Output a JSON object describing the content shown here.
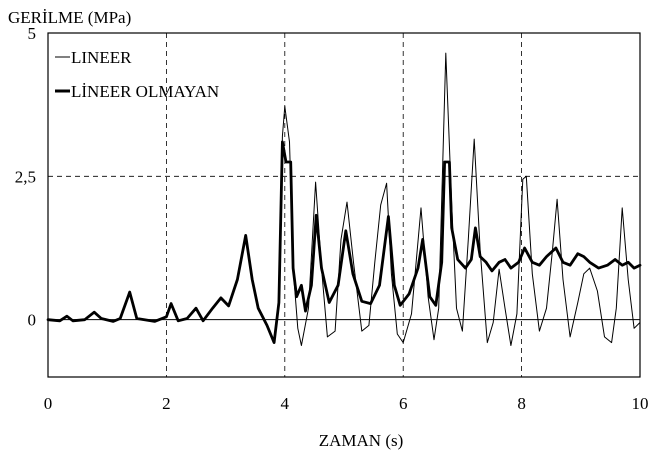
{
  "chart_data": {
    "type": "line",
    "ylabel": "GERİLME (MPa)",
    "xlabel": "ZAMAN (s)",
    "xlim": [
      0,
      10
    ],
    "ylim": [
      -1,
      5
    ],
    "x_ticks": [
      0,
      2,
      4,
      6,
      8,
      10
    ],
    "x_tick_labels": [
      "0",
      "2",
      "4",
      "6",
      "8",
      "10"
    ],
    "y_ticks": [
      0,
      2.5,
      5
    ],
    "y_tick_labels": [
      "0",
      "2,5",
      "5"
    ],
    "grid": "dashed at tick positions",
    "legend_position": "top-left",
    "series": [
      {
        "name": "LINEER",
        "color": "#000000",
        "style": "thin",
        "points": [
          [
            0,
            0
          ],
          [
            0.2,
            -0.02
          ],
          [
            0.32,
            0.06
          ],
          [
            0.42,
            -0.02
          ],
          [
            0.62,
            0
          ],
          [
            0.78,
            0.13
          ],
          [
            0.9,
            0.02
          ],
          [
            1.1,
            -0.03
          ],
          [
            1.22,
            0.02
          ],
          [
            1.38,
            0.48
          ],
          [
            1.5,
            0.02
          ],
          [
            1.8,
            -0.03
          ],
          [
            2,
            0.05
          ],
          [
            2.08,
            0.28
          ],
          [
            2.2,
            -0.02
          ],
          [
            2.35,
            0.02
          ],
          [
            2.5,
            0.2
          ],
          [
            2.62,
            -0.02
          ],
          [
            2.78,
            0.2
          ],
          [
            2.92,
            0.38
          ],
          [
            3.05,
            0.24
          ],
          [
            3.2,
            0.7
          ],
          [
            3.34,
            1.47
          ],
          [
            3.45,
            0.7
          ],
          [
            3.55,
            0.2
          ],
          [
            3.7,
            -0.1
          ],
          [
            3.82,
            -0.4
          ],
          [
            3.9,
            0.3
          ],
          [
            3.96,
            3.2
          ],
          [
            4.0,
            3.72
          ],
          [
            4.08,
            3.1
          ],
          [
            4.14,
            0.9
          ],
          [
            4.22,
            -0.15
          ],
          [
            4.28,
            -0.45
          ],
          [
            4.4,
            0.2
          ],
          [
            4.52,
            2.4
          ],
          [
            4.62,
            0.9
          ],
          [
            4.72,
            -0.3
          ],
          [
            4.85,
            -0.2
          ],
          [
            4.95,
            1.4
          ],
          [
            5.05,
            2.05
          ],
          [
            5.16,
            1.0
          ],
          [
            5.3,
            -0.2
          ],
          [
            5.42,
            -0.1
          ],
          [
            5.52,
            1.0
          ],
          [
            5.62,
            2.0
          ],
          [
            5.72,
            2.38
          ],
          [
            5.8,
            0.8
          ],
          [
            5.9,
            -0.25
          ],
          [
            6.0,
            -0.4
          ],
          [
            6.14,
            0.1
          ],
          [
            6.3,
            1.95
          ],
          [
            6.42,
            0.4
          ],
          [
            6.52,
            -0.35
          ],
          [
            6.6,
            0.2
          ],
          [
            6.72,
            4.65
          ],
          [
            6.82,
            2.0
          ],
          [
            6.9,
            0.2
          ],
          [
            7.0,
            -0.2
          ],
          [
            7.1,
            1.4
          ],
          [
            7.2,
            3.15
          ],
          [
            7.3,
            1.2
          ],
          [
            7.42,
            -0.4
          ],
          [
            7.52,
            -0.05
          ],
          [
            7.62,
            0.88
          ],
          [
            7.72,
            0.2
          ],
          [
            7.82,
            -0.45
          ],
          [
            7.92,
            0.1
          ],
          [
            8.02,
            2.45
          ],
          [
            8.08,
            2.5
          ],
          [
            8.18,
            0.8
          ],
          [
            8.3,
            -0.2
          ],
          [
            8.42,
            0.2
          ],
          [
            8.52,
            1.2
          ],
          [
            8.6,
            2.1
          ],
          [
            8.7,
            0.7
          ],
          [
            8.82,
            -0.3
          ],
          [
            8.95,
            0.3
          ],
          [
            9.05,
            0.8
          ],
          [
            9.15,
            0.9
          ],
          [
            9.28,
            0.5
          ],
          [
            9.4,
            -0.3
          ],
          [
            9.52,
            -0.4
          ],
          [
            9.6,
            0.2
          ],
          [
            9.7,
            1.95
          ],
          [
            9.8,
            0.7
          ],
          [
            9.9,
            -0.15
          ],
          [
            10,
            -0.05
          ]
        ]
      },
      {
        "name": "LİNEER OLMAYAN",
        "color": "#000000",
        "style": "thick",
        "points": [
          [
            0,
            0
          ],
          [
            0.2,
            -0.02
          ],
          [
            0.32,
            0.06
          ],
          [
            0.42,
            -0.02
          ],
          [
            0.62,
            0
          ],
          [
            0.78,
            0.13
          ],
          [
            0.9,
            0.02
          ],
          [
            1.1,
            -0.03
          ],
          [
            1.22,
            0.02
          ],
          [
            1.38,
            0.48
          ],
          [
            1.5,
            0.02
          ],
          [
            1.8,
            -0.03
          ],
          [
            2,
            0.05
          ],
          [
            2.08,
            0.28
          ],
          [
            2.2,
            -0.02
          ],
          [
            2.35,
            0.02
          ],
          [
            2.5,
            0.2
          ],
          [
            2.62,
            -0.02
          ],
          [
            2.78,
            0.2
          ],
          [
            2.92,
            0.38
          ],
          [
            3.05,
            0.24
          ],
          [
            3.2,
            0.7
          ],
          [
            3.34,
            1.47
          ],
          [
            3.45,
            0.7
          ],
          [
            3.55,
            0.2
          ],
          [
            3.7,
            -0.1
          ],
          [
            3.82,
            -0.4
          ],
          [
            3.9,
            0.3
          ],
          [
            3.96,
            3.1
          ],
          [
            4.02,
            2.75
          ],
          [
            4.1,
            2.75
          ],
          [
            4.14,
            0.9
          ],
          [
            4.2,
            0.4
          ],
          [
            4.28,
            0.6
          ],
          [
            4.35,
            0.15
          ],
          [
            4.45,
            0.6
          ],
          [
            4.53,
            1.82
          ],
          [
            4.62,
            0.9
          ],
          [
            4.75,
            0.3
          ],
          [
            4.9,
            0.6
          ],
          [
            5.03,
            1.55
          ],
          [
            5.15,
            0.8
          ],
          [
            5.3,
            0.32
          ],
          [
            5.45,
            0.28
          ],
          [
            5.6,
            0.6
          ],
          [
            5.75,
            1.8
          ],
          [
            5.85,
            0.6
          ],
          [
            5.95,
            0.25
          ],
          [
            6.1,
            0.45
          ],
          [
            6.25,
            0.9
          ],
          [
            6.33,
            1.4
          ],
          [
            6.45,
            0.4
          ],
          [
            6.55,
            0.25
          ],
          [
            6.65,
            1.0
          ],
          [
            6.7,
            2.75
          ],
          [
            6.78,
            2.75
          ],
          [
            6.82,
            1.6
          ],
          [
            6.92,
            1.05
          ],
          [
            7.05,
            0.9
          ],
          [
            7.15,
            1.05
          ],
          [
            7.22,
            1.6
          ],
          [
            7.3,
            1.1
          ],
          [
            7.4,
            1.0
          ],
          [
            7.5,
            0.85
          ],
          [
            7.62,
            1.0
          ],
          [
            7.72,
            1.05
          ],
          [
            7.82,
            0.9
          ],
          [
            7.95,
            1.0
          ],
          [
            8.05,
            1.25
          ],
          [
            8.18,
            1.0
          ],
          [
            8.3,
            0.95
          ],
          [
            8.42,
            1.1
          ],
          [
            8.58,
            1.25
          ],
          [
            8.7,
            1.0
          ],
          [
            8.82,
            0.95
          ],
          [
            8.95,
            1.15
          ],
          [
            9.05,
            1.1
          ],
          [
            9.15,
            1.0
          ],
          [
            9.3,
            0.9
          ],
          [
            9.45,
            0.95
          ],
          [
            9.58,
            1.05
          ],
          [
            9.7,
            0.95
          ],
          [
            9.8,
            1.0
          ],
          [
            9.9,
            0.9
          ],
          [
            10,
            0.95
          ]
        ]
      }
    ]
  }
}
